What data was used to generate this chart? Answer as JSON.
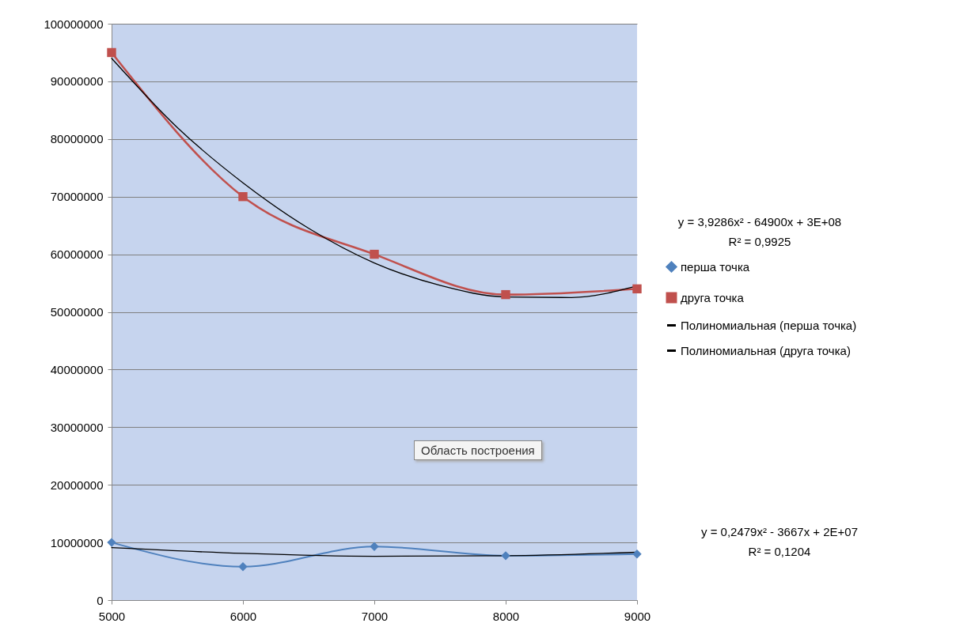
{
  "chart_data": {
    "type": "line",
    "xlim": [
      5000,
      9000
    ],
    "xticks": [
      5000,
      6000,
      7000,
      8000,
      9000
    ],
    "ylim": [
      0,
      100000000
    ],
    "yticks": [
      0,
      10000000,
      20000000,
      30000000,
      40000000,
      50000000,
      60000000,
      70000000,
      80000000,
      90000000,
      100000000
    ],
    "grid": "y",
    "legend": "right",
    "x": [
      5000,
      6000,
      7000,
      8000,
      9000
    ],
    "series": [
      {
        "name": "перша точка",
        "color": "#4f81bd",
        "marker": "diamond",
        "values": [
          10000000,
          5800000,
          9300000,
          7700000,
          8000000
        ]
      },
      {
        "name": "друга точка",
        "color": "#c0504d",
        "marker": "square",
        "values": [
          95000000,
          70000000,
          60000000,
          53000000,
          54000000
        ]
      },
      {
        "name": "Полиномиальная (перша точка)",
        "color": "#000000",
        "marker": "none",
        "x": [
          5000,
          6000,
          7000,
          8000,
          9000
        ],
        "values": [
          9100000,
          8100000,
          7600000,
          7700000,
          8300000
        ]
      },
      {
        "name": "Полиномиальная (друга точка)",
        "color": "#000000",
        "marker": "none",
        "x": [
          5000,
          5500,
          6000,
          6500,
          7000,
          7500,
          8000,
          8500,
          9000
        ],
        "values": [
          94000000,
          82000000,
          72400000,
          64500000,
          58500000,
          54600000,
          52600000,
          52500000,
          54500000
        ]
      }
    ],
    "annotations": [
      "y = 3,9286x² - 64900x + 3E+08",
      "R² = 0,9925",
      "y = 0,2479x² - 3667x + 2E+07",
      "R² = 0,1204",
      "Область построения"
    ]
  }
}
